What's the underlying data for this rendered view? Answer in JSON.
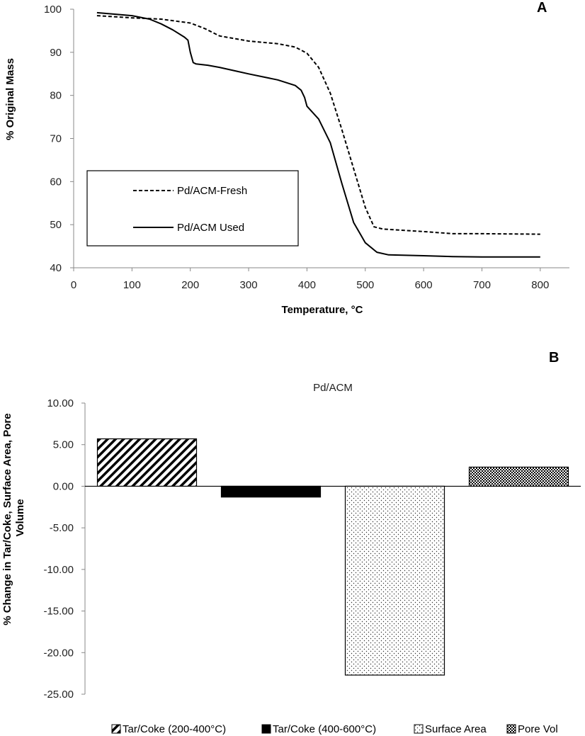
{
  "chart_data": [
    {
      "panel": "A",
      "type": "line",
      "xlabel": "Temperature, °C",
      "ylabel": "% Original Mass",
      "xlim": [
        0,
        850
      ],
      "ylim": [
        40,
        100
      ],
      "x_ticks": [
        0,
        100,
        200,
        300,
        400,
        500,
        600,
        700,
        800
      ],
      "y_ticks": [
        40,
        50,
        60,
        70,
        80,
        90,
        100
      ],
      "legend": [
        "Pd/ACM-Fresh",
        "Pd/ACM Used"
      ],
      "legend_placement": "lower-left",
      "series": [
        {
          "name": "Pd/ACM-Fresh",
          "style": "dashed",
          "x": [
            40,
            100,
            150,
            200,
            225,
            250,
            300,
            350,
            380,
            400,
            420,
            440,
            460,
            480,
            500,
            515,
            530,
            600,
            650,
            700,
            800
          ],
          "y": [
            98.5,
            98.0,
            97.7,
            96.8,
            95.5,
            93.8,
            92.6,
            92.0,
            91.2,
            89.8,
            86.5,
            80.5,
            72.0,
            63.0,
            54.0,
            49.5,
            49.0,
            48.4,
            47.9,
            47.9,
            47.8
          ]
        },
        {
          "name": "Pd/ACM Used",
          "style": "solid",
          "x": [
            40,
            100,
            130,
            150,
            170,
            190,
            196,
            200,
            205,
            210,
            230,
            250,
            280,
            300,
            350,
            380,
            390,
            396,
            400,
            420,
            440,
            460,
            480,
            500,
            520,
            540,
            600,
            650,
            700,
            800
          ],
          "y": [
            99.2,
            98.5,
            97.7,
            96.6,
            95.2,
            93.5,
            92.8,
            90.0,
            87.6,
            87.3,
            87.0,
            86.5,
            85.6,
            85.0,
            83.6,
            82.3,
            81.2,
            79.5,
            77.5,
            74.5,
            69.0,
            59.5,
            50.5,
            45.8,
            43.6,
            43.0,
            42.8,
            42.6,
            42.5,
            42.5
          ]
        }
      ]
    },
    {
      "panel": "B",
      "type": "bar",
      "title": "Pd/ACM",
      "ylabel": "% Change in Tar/Coke, Surface Area, Pore Volume",
      "ylim": [
        -25,
        10
      ],
      "y_ticks": [
        10,
        5,
        0,
        -5,
        -10,
        -15,
        -20,
        -25
      ],
      "y_tick_labels": [
        "10.00",
        "5.00",
        "0.00",
        "-5.00",
        "-10.00",
        "-15.00",
        "-20.00",
        "-25.00"
      ],
      "categories": [
        "Tar/Coke (200-400°C)",
        "Tar/Coke (400-600°C)",
        "Surface Area",
        "Pore Vol"
      ],
      "values": [
        5.7,
        -1.3,
        -22.7,
        2.3
      ],
      "patterns": [
        "diagonal",
        "solid",
        "dots",
        "checker"
      ],
      "legend_placement": "bottom"
    }
  ],
  "colors": {
    "line": "#000000",
    "axis": "#888888",
    "bar_outline": "#000000"
  }
}
